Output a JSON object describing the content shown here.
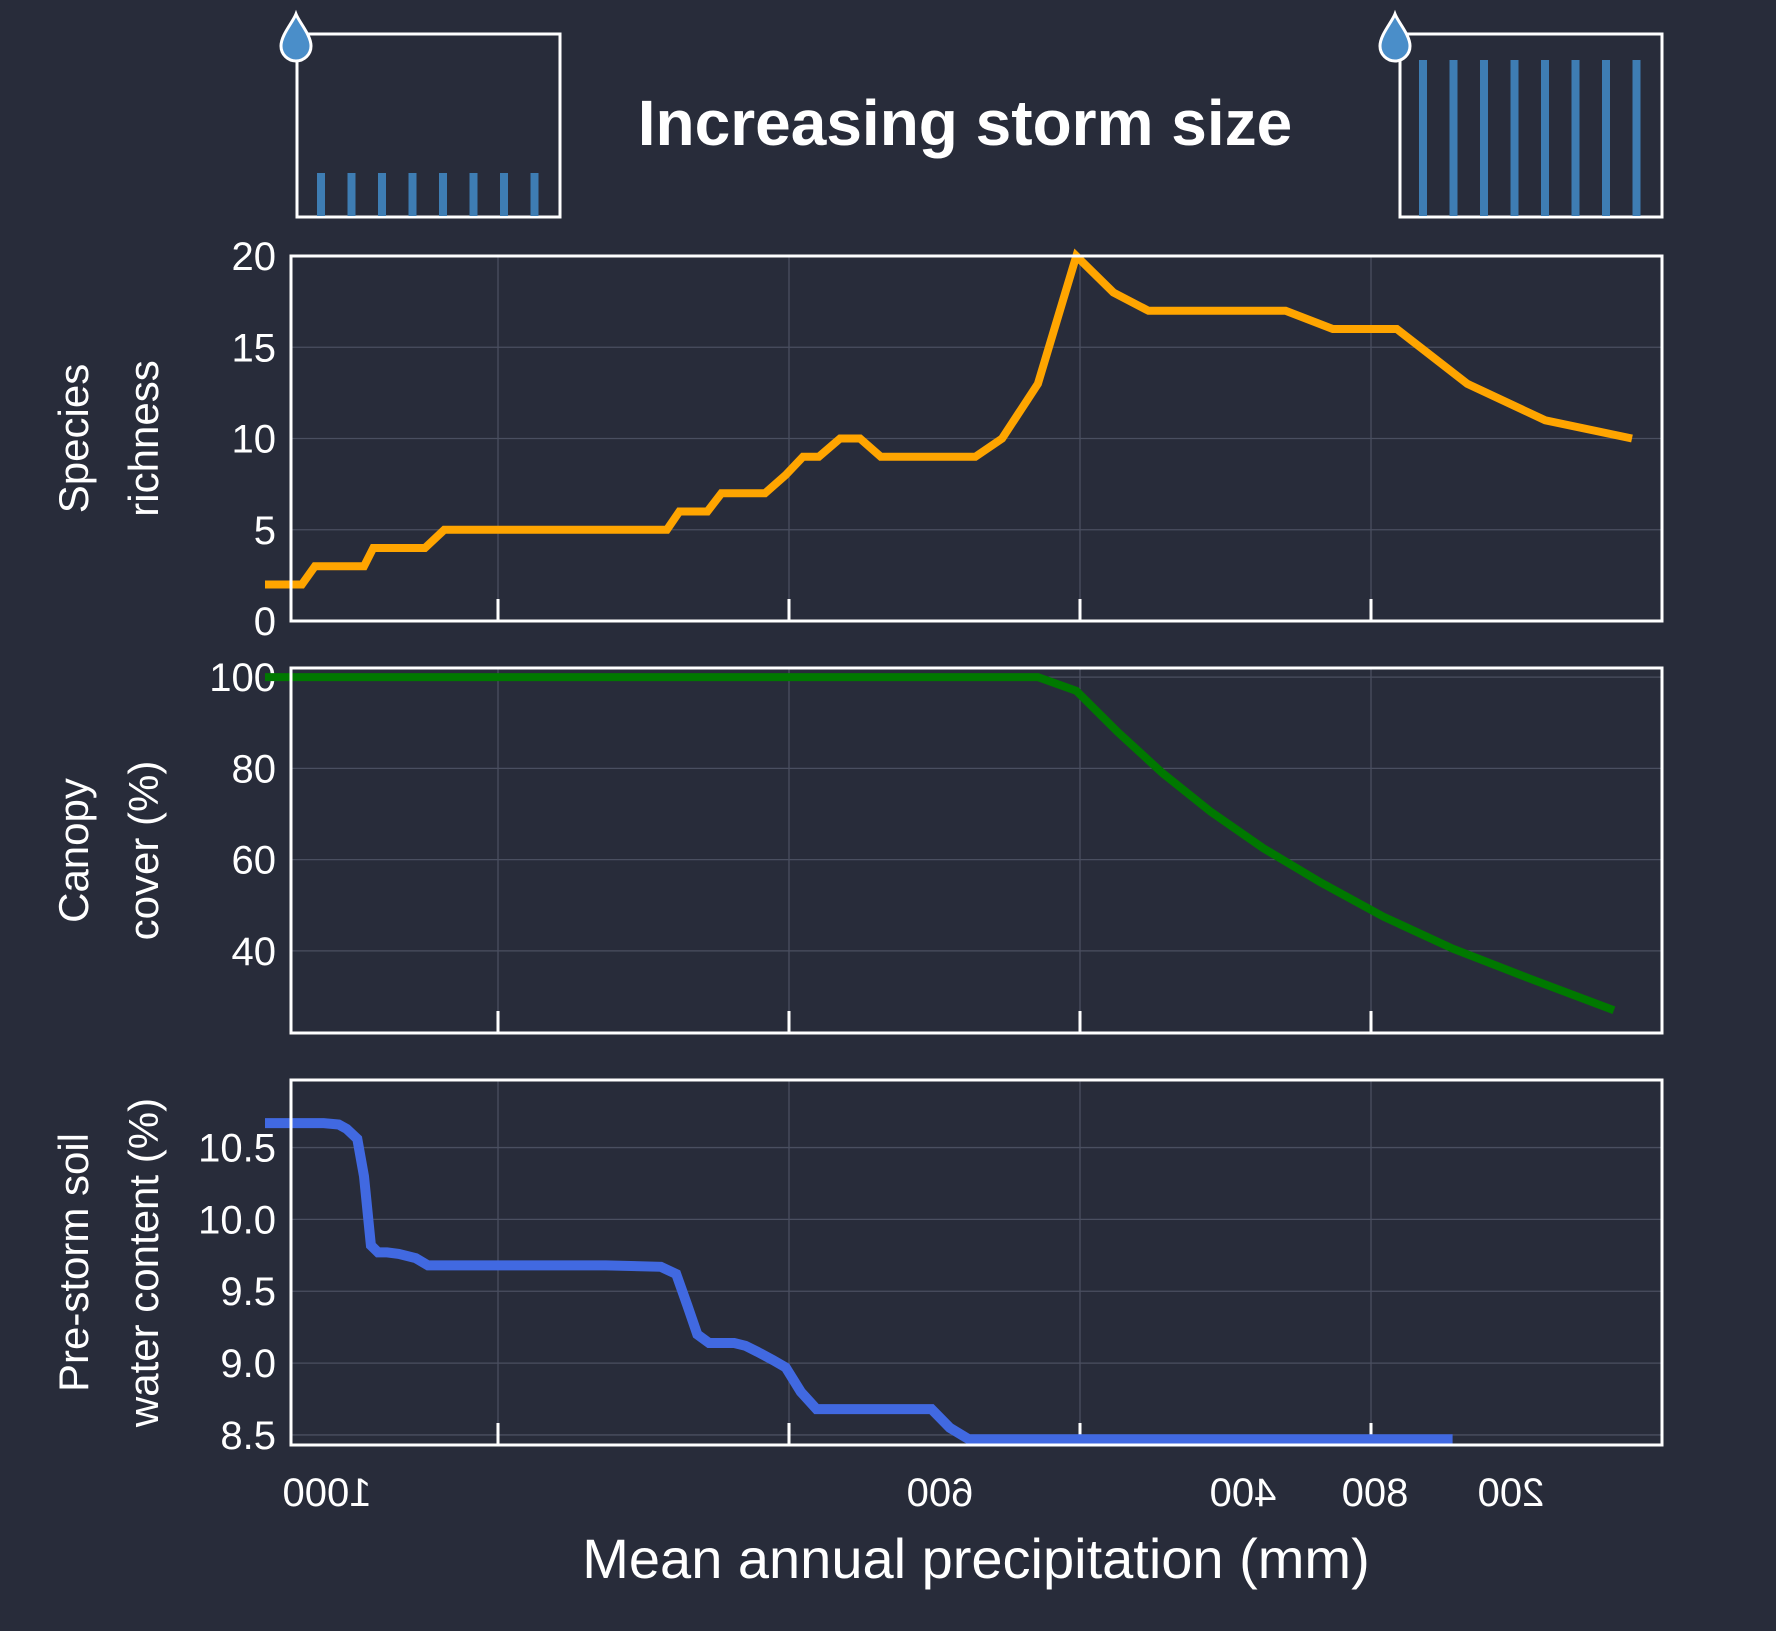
{
  "title": "Increasing storm size",
  "colors": {
    "background": "#282c3a",
    "richness": "#ffa500",
    "canopy": "#007800",
    "soil": "#4169e1",
    "rain_bars": "#3e7db3",
    "drop": "#4a8ec9"
  },
  "icons": [
    "water-drop-icon",
    "water-drop-icon"
  ],
  "x_axis": {
    "label": "Mean annual precipitation (mm)",
    "ticks": [
      "1000",
      "600",
      "400",
      "800",
      "200"
    ]
  },
  "chart_data": [
    {
      "type": "line",
      "ylabel": [
        "Species",
        "richness"
      ],
      "ylim": [
        0,
        20
      ],
      "yticks": [
        "0",
        "5",
        "10",
        "15",
        "20"
      ],
      "grid": true,
      "x": [
        1100,
        1000,
        985,
        965,
        925,
        905,
        875,
        860,
        845,
        825,
        800,
        780,
        760,
        705,
        685,
        655,
        640,
        630,
        610,
        596,
        588,
        582,
        576,
        564,
        557,
        552,
        545,
        537,
        530,
        521,
        513,
        506,
        499,
        491,
        484,
        476,
        468,
        461,
        452,
        444,
        436,
        428,
        419,
        411,
        403,
        388,
        380,
        370,
        362,
        355,
        346,
        338,
        330,
        322,
        310,
        304,
        298,
        290,
        280,
        270,
        261,
        253,
        243,
        235,
        226,
        218,
        208,
        198,
        188,
        178
      ],
      "series": [
        {
          "values": [
            2,
            2,
            2,
            2,
            3,
            3,
            3,
            3,
            3,
            3,
            3,
            4,
            4,
            4,
            4,
            5,
            5,
            5,
            5,
            5,
            5,
            5,
            5,
            5,
            5,
            5,
            5,
            5,
            5,
            5,
            5,
            5,
            5,
            5,
            5,
            5,
            5,
            5,
            5,
            5,
            5,
            6,
            6,
            6,
            7,
            7,
            7,
            8,
            9,
            9,
            10,
            10,
            9,
            9,
            9,
            9,
            9,
            10,
            13,
            20,
            18,
            17,
            17,
            17,
            17,
            16,
            16,
            13,
            11,
            10
          ]
        }
      ]
    },
    {
      "type": "line",
      "ylabel": [
        "Canopy",
        "cover (%)"
      ],
      "ylim": [
        22,
        102
      ],
      "yticks": [
        "40",
        "60",
        "80",
        "100"
      ],
      "grid": true,
      "x": [
        1100,
        800,
        600,
        400,
        280,
        270,
        260,
        250,
        240,
        230,
        220,
        210,
        200,
        190,
        180
      ],
      "series": [
        {
          "values": [
            100,
            100,
            100,
            100,
            100,
            97,
            88,
            79,
            70.5,
            62.5,
            55,
            47.5,
            40.5,
            34,
            27
          ]
        }
      ]
    },
    {
      "type": "line",
      "ylabel": [
        "Pre-storm soil",
        "water content (%)"
      ],
      "ylim": [
        8.43,
        10.97
      ],
      "yticks": [
        "8.5",
        "9.0",
        "9.5",
        "10.0",
        "10.5"
      ],
      "grid": true,
      "x": [
        1100,
        900,
        860,
        840,
        815,
        800,
        785,
        770,
        752,
        730,
        700,
        680,
        660,
        600,
        500,
        480,
        440,
        430,
        423,
        417,
        410,
        402,
        396,
        390,
        384,
        376,
        370,
        363,
        356,
        349,
        342,
        335,
        327,
        320,
        312,
        306,
        300,
        294,
        287,
        280,
        270,
        250,
        200
      ],
      "series": [
        {
          "values": [
            10.67,
            10.67,
            10.66,
            10.63,
            10.56,
            10.3,
            9.82,
            9.77,
            9.77,
            9.76,
            9.73,
            9.68,
            9.68,
            9.68,
            9.68,
            9.68,
            9.67,
            9.62,
            9.4,
            9.2,
            9.14,
            9.14,
            9.14,
            9.12,
            9.08,
            9.02,
            8.97,
            8.8,
            8.68,
            8.68,
            8.68,
            8.68,
            8.68,
            8.68,
            8.68,
            8.55,
            8.47,
            8.47,
            8.47,
            8.47,
            8.47,
            8.47,
            8.47
          ]
        }
      ]
    }
  ]
}
